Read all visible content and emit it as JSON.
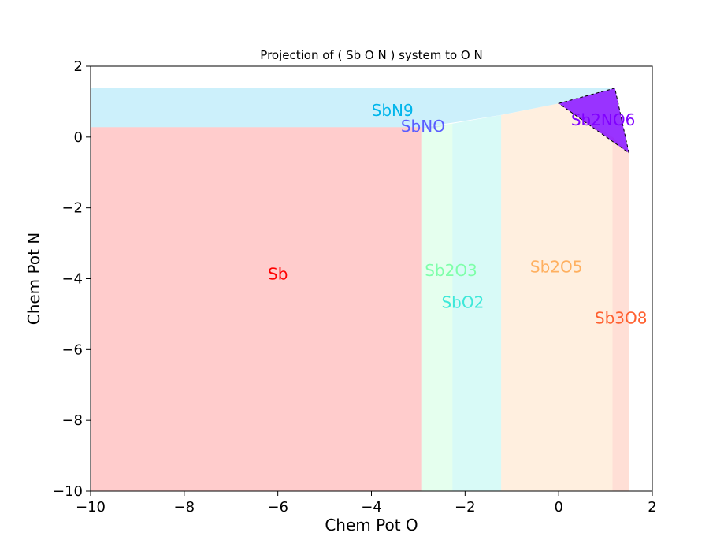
{
  "chart_data": {
    "type": "area",
    "title": "Projection of ( Sb O N ) system to O N",
    "xlabel": "Chem Pot O",
    "ylabel": "Chem Pot N",
    "xlim": [
      -10,
      2
    ],
    "ylim": [
      -10,
      2
    ],
    "xticks": [
      -10,
      -8,
      -6,
      -4,
      -2,
      0,
      2
    ],
    "yticks": [
      -10,
      -8,
      -6,
      -4,
      -2,
      0,
      2
    ],
    "xtick_labels": [
      "−10",
      "−8",
      "−6",
      "−4",
      "−2",
      "0",
      "2"
    ],
    "ytick_labels": [
      "−10",
      "−8",
      "−6",
      "−4",
      "−2",
      "0",
      "2"
    ],
    "grid": false,
    "regions": [
      {
        "name": "Sb",
        "color": "#ff0000",
        "opacity": 0.2,
        "label_at": [
          -6.0,
          -3.9
        ],
        "polygon": [
          [
            -10,
            -10
          ],
          [
            -2.92,
            -10
          ],
          [
            -2.92,
            0.28
          ],
          [
            -10,
            0.28
          ]
        ]
      },
      {
        "name": "SbN9",
        "color": "#00b5eb",
        "opacity": 0.2,
        "label_at": [
          -3.55,
          0.72
        ],
        "polygon": [
          [
            -10,
            0.28
          ],
          [
            -2.92,
            0.28
          ],
          [
            -2.2,
            0.42
          ],
          [
            -1.25,
            0.62
          ],
          [
            0.0,
            0.95
          ],
          [
            1.2,
            1.38
          ],
          [
            -10,
            1.38
          ]
        ]
      },
      {
        "name": "SbNO",
        "color": "#5a5cff",
        "opacity": 0.2,
        "label_at": [
          -2.9,
          0.27
        ],
        "polygon": [
          [
            -2.92,
            0.28
          ],
          [
            -2.85,
            0.29
          ],
          [
            -2.4,
            0.33
          ],
          [
            -2.7,
            0.25
          ]
        ]
      },
      {
        "name": "Sb2O3",
        "color": "#7fffaa",
        "opacity": 0.2,
        "label_at": [
          -2.3,
          -3.8
        ],
        "polygon": [
          [
            -2.92,
            -10
          ],
          [
            -2.27,
            -10
          ],
          [
            -2.27,
            0.38
          ],
          [
            -2.92,
            0.28
          ]
        ]
      },
      {
        "name": "SbO2",
        "color": "#3de8d9",
        "opacity": 0.2,
        "label_at": [
          -2.05,
          -4.7
        ],
        "polygon": [
          [
            -2.27,
            -10
          ],
          [
            -1.23,
            -10
          ],
          [
            -1.23,
            0.62
          ],
          [
            -2.27,
            0.38
          ]
        ]
      },
      {
        "name": "Sb2O5",
        "color": "#ffb060",
        "opacity": 0.2,
        "label_at": [
          -0.05,
          -3.7
        ],
        "polygon": [
          [
            -1.23,
            -10
          ],
          [
            1.15,
            -10
          ],
          [
            1.15,
            0.0
          ],
          [
            0.0,
            0.95
          ],
          [
            -1.23,
            0.62
          ]
        ]
      },
      {
        "name": "Sb3O8",
        "color": "#ff6030",
        "opacity": 0.2,
        "label_at": [
          1.33,
          -5.15
        ],
        "polygon": [
          [
            1.15,
            -10
          ],
          [
            1.5,
            -10
          ],
          [
            1.5,
            -0.45
          ],
          [
            1.15,
            0.0
          ]
        ]
      },
      {
        "name": "Sb2NO6",
        "color": "#8000ff",
        "opacity": 0.8,
        "dashed": true,
        "label_at": [
          0.95,
          0.45
        ],
        "polygon": [
          [
            0.0,
            0.95
          ],
          [
            1.2,
            1.38
          ],
          [
            1.5,
            -0.45
          ]
        ]
      }
    ]
  }
}
